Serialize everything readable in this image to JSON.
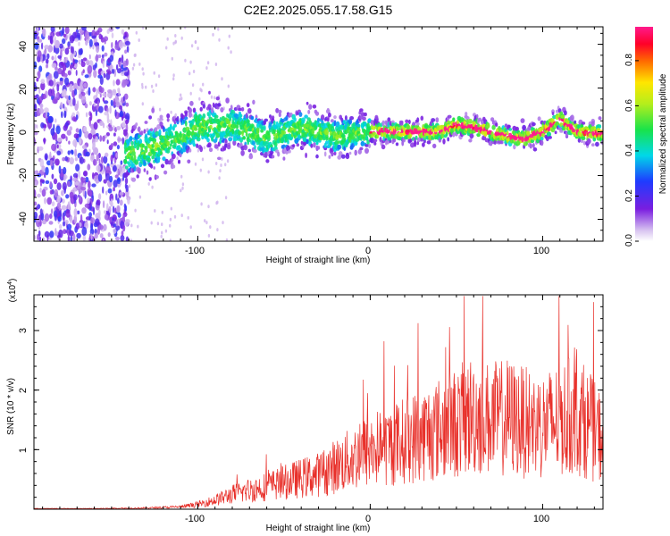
{
  "title": "C2E2.2025.055.17.58.G15",
  "chart_data": [
    {
      "type": "heatmap",
      "xlabel": "Height of straight line (km)",
      "ylabel": "Frequency (Hz)",
      "xlim": [
        -195,
        135
      ],
      "ylim": [
        -50,
        48
      ],
      "x_tick_labels": [
        "-100",
        "0",
        "100"
      ],
      "y_tick_labels": [
        "-40",
        "-20",
        "0",
        "20",
        "40"
      ],
      "colorbar": {
        "label": "Normalized spectral amplitude",
        "range": [
          0,
          0.95
        ],
        "tick_labels": [
          "0.0",
          "0.2",
          "0.4",
          "0.6",
          "0.8"
        ]
      },
      "ridge": {
        "x": [
          -140,
          -120,
          -100,
          -80,
          -60,
          -40,
          -20,
          0,
          10,
          20,
          30,
          40,
          50,
          60,
          70,
          80,
          90,
          100,
          110,
          120,
          135
        ],
        "freq": [
          -10,
          -6,
          2,
          3,
          -3,
          2,
          -2,
          0,
          0,
          0,
          0,
          0,
          3,
          2,
          0,
          -2,
          -3,
          0,
          6,
          0,
          -1
        ]
      }
    },
    {
      "type": "line",
      "xlabel": "Height of straight line (km)",
      "ylabel": "SNR (10 * v/v)",
      "y_scale_label": "(x10^4)",
      "y_scale_base": "(x10",
      "y_scale_exp": "4",
      "y_scale_close": ")",
      "xlim": [
        -195,
        135
      ],
      "ylim": [
        0,
        3.6
      ],
      "x_tick_labels": [
        "-100",
        "0",
        "100"
      ],
      "y_tick_labels": [
        "1",
        "2",
        "3"
      ],
      "color": "#e8302a",
      "series": [
        {
          "x": [
            -195,
            -160,
            -130,
            -110,
            -100,
            -90,
            -80,
            -70,
            -60,
            -50,
            -40,
            -30,
            -20,
            -10,
            0,
            10,
            20,
            30,
            40,
            50,
            60,
            70,
            80,
            90,
            100,
            110,
            120,
            130,
            135
          ],
          "y": [
            0.01,
            0.01,
            0.02,
            0.04,
            0.08,
            0.15,
            0.25,
            0.32,
            0.38,
            0.45,
            0.52,
            0.58,
            0.72,
            0.85,
            1.0,
            1.05,
            1.15,
            1.25,
            1.35,
            1.45,
            1.6,
            1.5,
            1.55,
            1.45,
            1.4,
            1.5,
            1.6,
            1.3,
            1.2
          ]
        }
      ]
    }
  ]
}
